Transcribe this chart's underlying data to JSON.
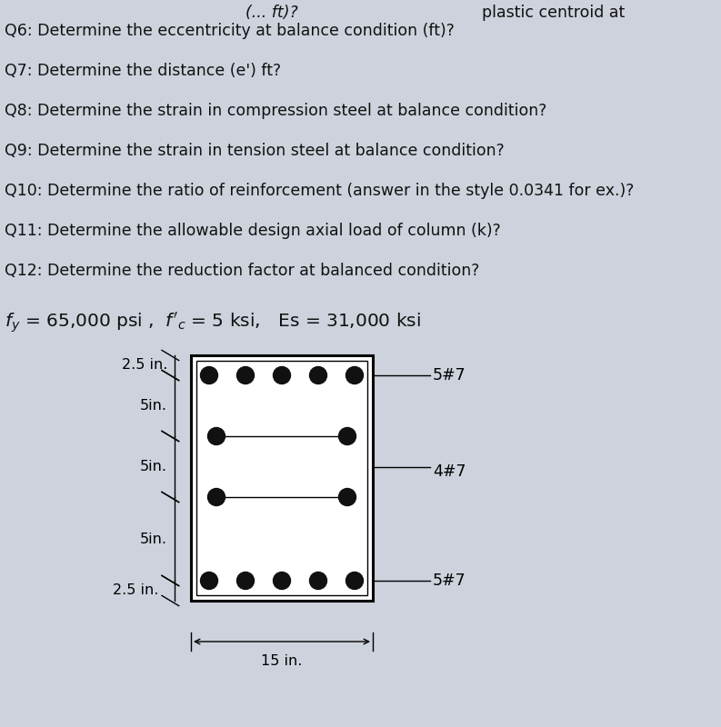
{
  "bg_color": "#cdd2dc",
  "text_color": "#111111",
  "questions": [
    "Q6: Determine the eccentricity at balance condition (ft)?",
    "Q7: Determine the distance (e') ft?",
    "Q8: Determine the strain in compression steel at balance condition?",
    "Q9: Determine the strain in tension steel at balance condition?",
    "Q10: Determine the ratio of reinforcement (answer in the style 0.0341 for ex.)?",
    "Q11: Determine the allowable design axial load of column (k)?",
    "Q12: Determine the reduction factor at balanced condition?"
  ],
  "font_size_q": 12.5,
  "font_size_mat": 14.5,
  "font_size_dim": 11.5,
  "font_size_bar": 12.5
}
